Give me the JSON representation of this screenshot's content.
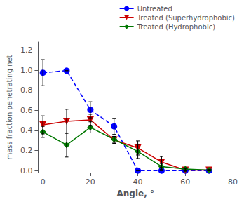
{
  "chart_data": {
    "type": "line",
    "xlabel": "Angle, °",
    "ylabel": "mass fraction penetrating net",
    "x": [
      0,
      10,
      20,
      30,
      40,
      50,
      60,
      70
    ],
    "xlim": [
      -2,
      80
    ],
    "ylim": [
      -0.02,
      1.28
    ],
    "xticks": [
      0,
      20,
      40,
      60,
      80
    ],
    "yticks": [
      {
        "value": 0,
        "label": "0.0"
      },
      0.2,
      0.4,
      0.6,
      0.8,
      {
        "value": 1,
        "label": "1.0"
      },
      1.2
    ],
    "grid": false,
    "legend": "upper right",
    "series": [
      {
        "name": "Untreated",
        "color": "#0000ff",
        "marker": "circle",
        "line_style": "dashed",
        "values": [
          0.975,
          0.995,
          0.605,
          0.44,
          0.0,
          0.0,
          0.0,
          0.0
        ],
        "yerr": [
          0.13,
          0.0,
          0.08,
          0.08,
          0.0,
          0.0,
          0.0,
          0.0
        ]
      },
      {
        "name": "Treated (Superhydrophobic)",
        "color": "#cc0000",
        "marker": "triangle-down",
        "line_style": "solid",
        "values": [
          0.455,
          0.49,
          0.505,
          0.305,
          0.225,
          0.085,
          0.005,
          0.005
        ],
        "yerr": [
          0.09,
          0.12,
          0.055,
          0.035,
          0.07,
          0.055,
          0.012,
          0.004
        ]
      },
      {
        "name": "Treated (Hydrophobic)",
        "color": "#007700",
        "marker": "diamond",
        "line_style": "solid",
        "values": [
          0.385,
          0.255,
          0.43,
          0.31,
          0.19,
          0.04,
          0.015,
          0.005
        ],
        "yerr": [
          0.055,
          0.12,
          0.055,
          0.03,
          0.07,
          0.03,
          0.012,
          0.004
        ]
      }
    ]
  }
}
